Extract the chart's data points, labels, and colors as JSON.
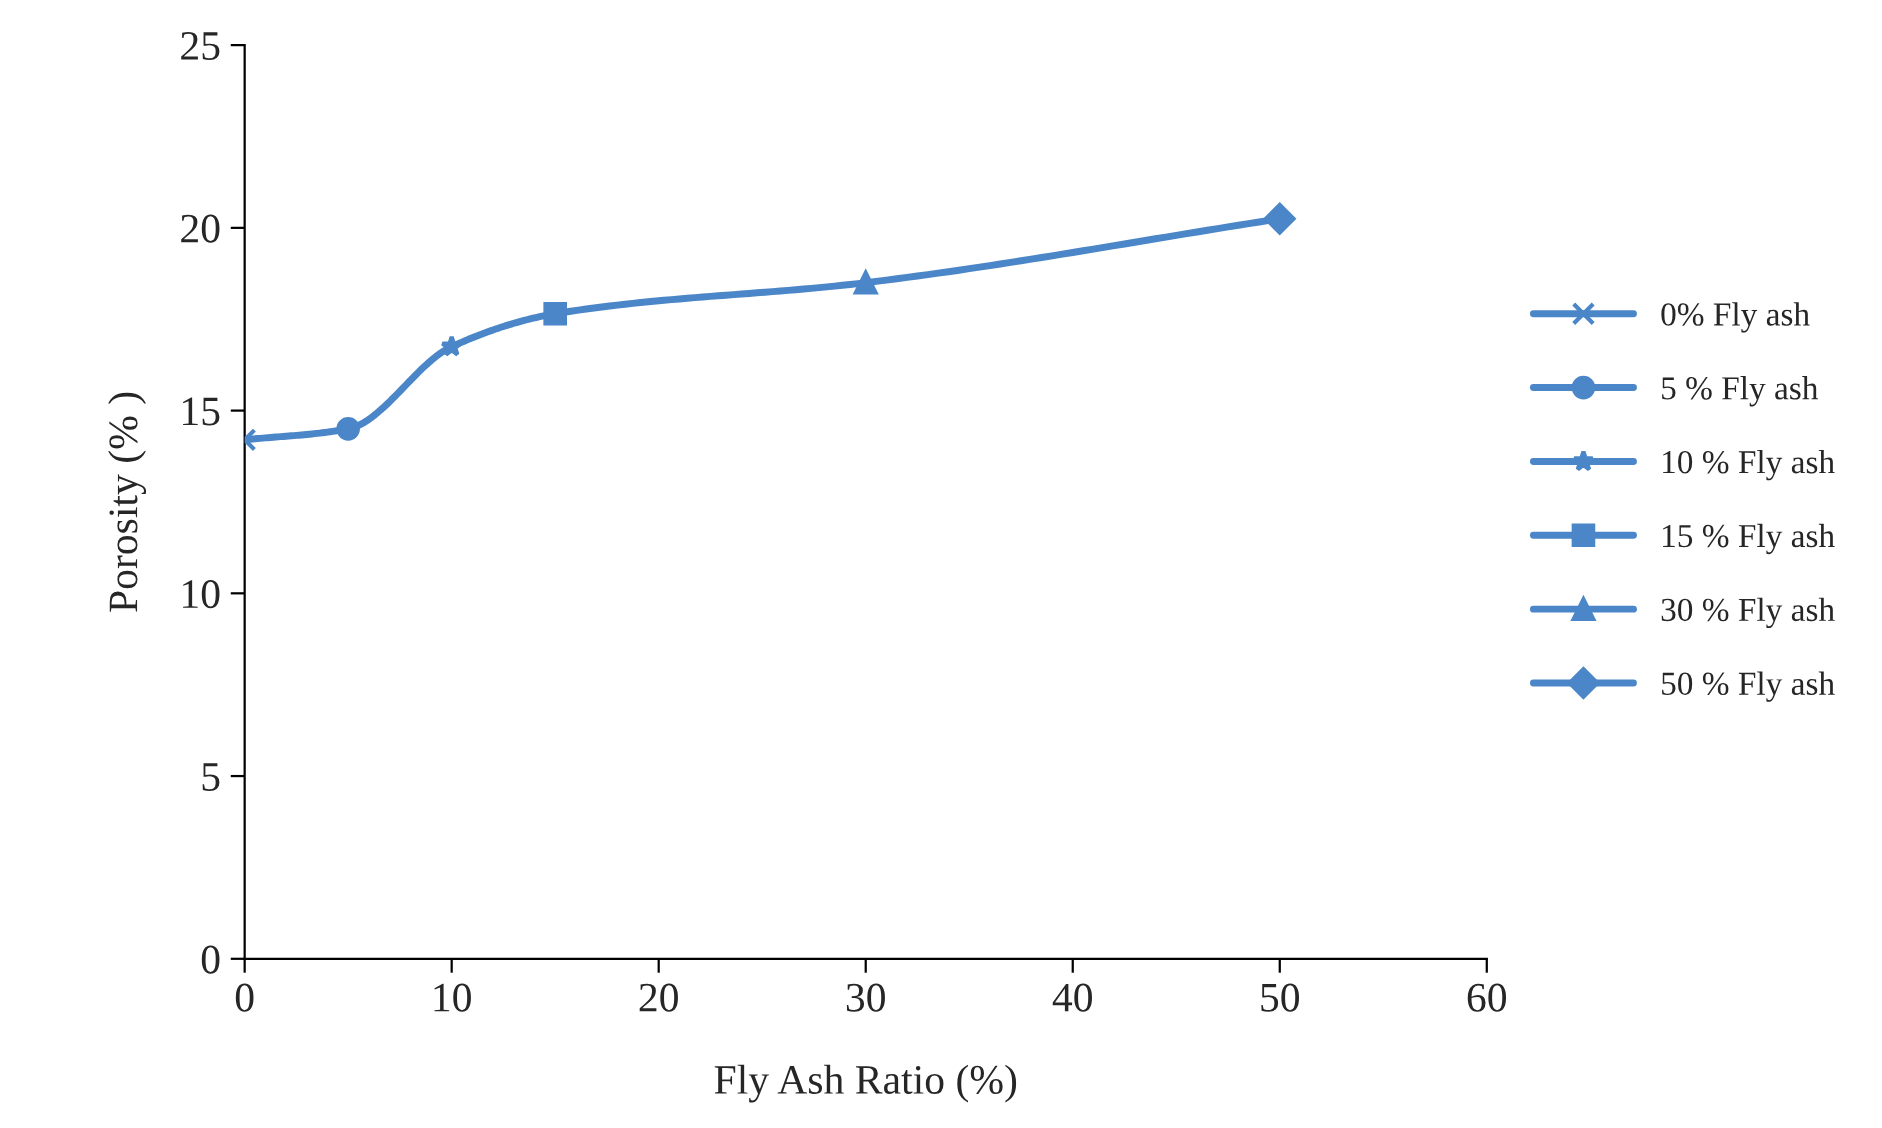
{
  "chart_data": {
    "type": "line",
    "xlabel": "Fly Ash Ratio (%)",
    "ylabel": "Porosity (% )",
    "xlim": [
      0,
      60
    ],
    "xticks": [
      0,
      10,
      20,
      30,
      40,
      50,
      60
    ],
    "ylim": [
      0,
      25
    ],
    "yticks": [
      0,
      5,
      10,
      15,
      20,
      25
    ],
    "grid": false,
    "legend": "right",
    "line_style": "solid",
    "series": [
      {
        "color": "#4a86c8",
        "x": [
          0,
          5,
          10,
          15,
          30,
          50
        ],
        "values": [
          14.2,
          14.5,
          16.75,
          17.65,
          18.5,
          20.25
        ],
        "marker": "none"
      },
      {
        "name": "0% Fly ash",
        "color": "#4a86c8",
        "x": [
          0
        ],
        "values": [
          14.2
        ],
        "marker": "cross"
      },
      {
        "name": "5 % Fly ash",
        "color": "#4a86c8",
        "x": [
          5
        ],
        "values": [
          14.5
        ],
        "marker": "circle"
      },
      {
        "name": "10 % Fly ash",
        "color": "#4a86c8",
        "x": [
          10
        ],
        "values": [
          16.75
        ],
        "marker": "star"
      },
      {
        "name": "15 % Fly ash",
        "color": "#4a86c8",
        "x": [
          15
        ],
        "values": [
          17.65
        ],
        "marker": "square"
      },
      {
        "name": "30 % Fly ash",
        "color": "#4a86c8",
        "x": [
          30
        ],
        "values": [
          18.5
        ],
        "marker": "triangle"
      },
      {
        "name": "50 % Fly ash",
        "color": "#4a86c8",
        "x": [
          50
        ],
        "values": [
          20.25
        ],
        "marker": "diamond"
      }
    ]
  }
}
